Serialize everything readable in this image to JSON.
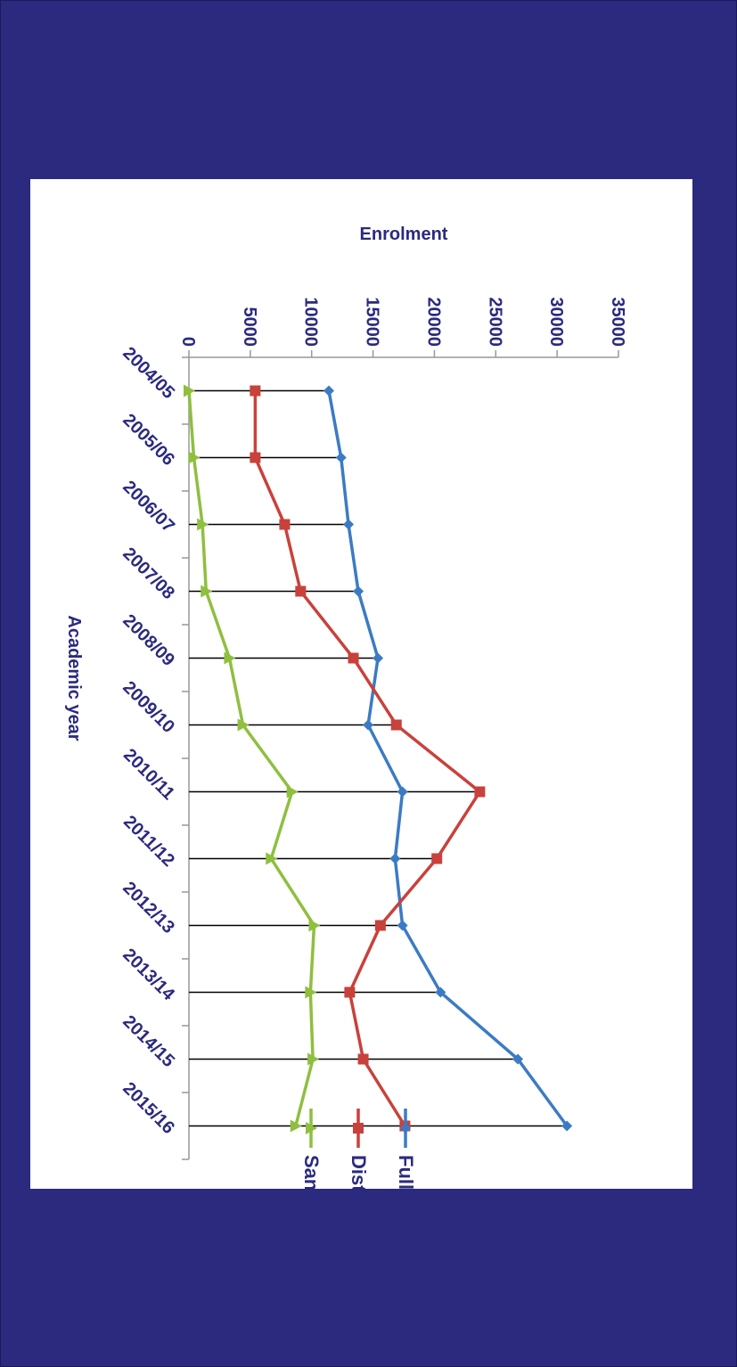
{
  "colors": {
    "background": "#2b2a7f",
    "panel": "#ffffff",
    "text": "#2b2a7f",
    "full_time": "#3b7bc4",
    "distance": "#c9413b",
    "sandwich": "#8fbf3f",
    "drop_lines": "#000000",
    "axis": "#999999"
  },
  "chart_data": {
    "type": "line",
    "categories": [
      "2004/05",
      "2005/06",
      "2006/07",
      "2007/08",
      "2008/09",
      "2009/10",
      "2010/11",
      "2011/12",
      "2012/13",
      "2013/14",
      "2014/15",
      "2015/16"
    ],
    "series": [
      {
        "name": "Full-time",
        "marker": "diamond",
        "color": "#3b7bc4",
        "values": [
          11400,
          12400,
          13000,
          13800,
          15400,
          14600,
          17400,
          16800,
          17400,
          20500,
          26800,
          30800
        ]
      },
      {
        "name": "Distance",
        "marker": "square",
        "color": "#c9413b",
        "values": [
          5400,
          5400,
          7800,
          9100,
          13400,
          16900,
          23700,
          20200,
          15600,
          13100,
          14200,
          17600
        ]
      },
      {
        "name": "Sandwich",
        "marker": "triangle",
        "color": "#8fbf3f",
        "values": [
          0,
          400,
          1100,
          1400,
          3300,
          4400,
          8400,
          6700,
          10200,
          9900,
          10100,
          8700
        ]
      }
    ],
    "xlabel": "Academic year",
    "ylabel": "Enrolment",
    "ylim": [
      0,
      35000
    ],
    "yticks": [
      0,
      5000,
      10000,
      15000,
      20000,
      25000,
      30000,
      35000
    ],
    "drop_lines": true,
    "grid": false,
    "legend_position": "right",
    "orientation": "rotated 90 degrees clockwise"
  }
}
